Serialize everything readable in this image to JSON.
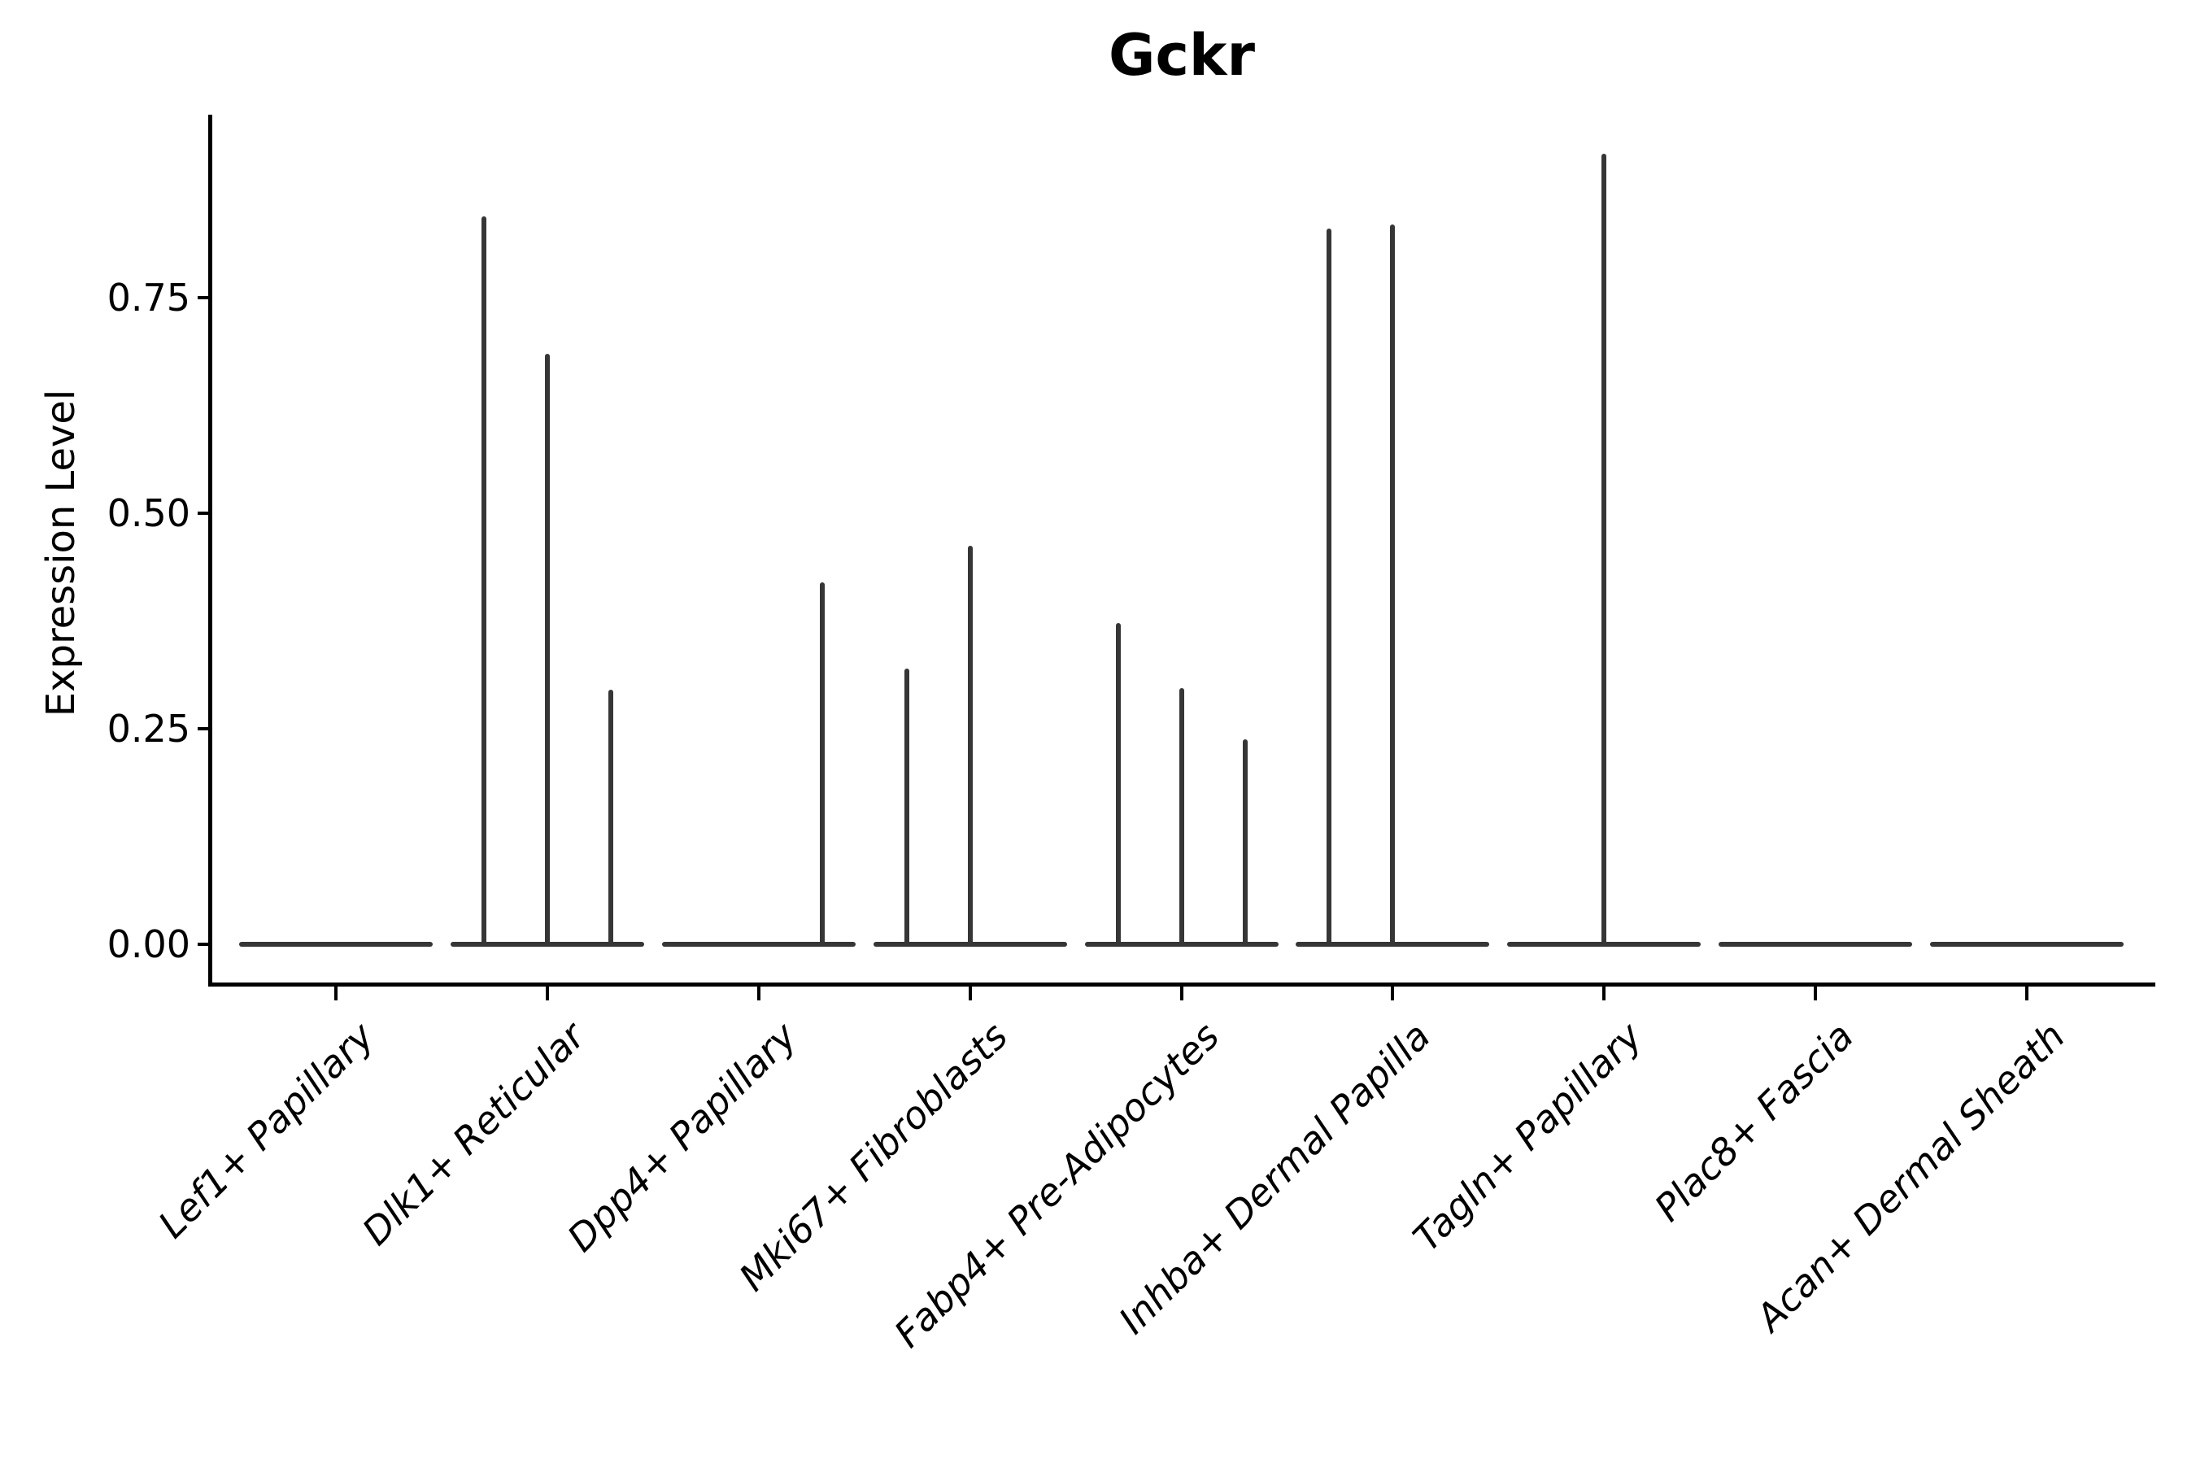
{
  "title": "Gckr",
  "axes": {
    "ylabel": "Expression Level",
    "ytick_labels": [
      "0.00",
      "0.25",
      "0.50",
      "0.75"
    ]
  },
  "colors": {
    "violin": "#363636",
    "axis": "#000000",
    "text": "#000000",
    "background": "#ffffff"
  },
  "chart_data": {
    "type": "violin",
    "title": "Gckr",
    "xlabel": "",
    "ylabel": "Expression Level",
    "yticks": [
      0.0,
      0.25,
      0.5,
      0.75
    ],
    "ylim": [
      -0.05,
      0.95
    ],
    "grid": false,
    "legend": "none",
    "categories": [
      "Lef1+ Papillary",
      "Dlk1+ Reticular",
      "Dpp4+ Papillary",
      "Mki67+ Fibroblasts",
      "Fabp4+ Pre-Adipocytes",
      "Inhba+ Dermal Papilla",
      "Tagln+ Papillary",
      "Plac8+ Fascia",
      "Acan+ Dermal Sheath"
    ],
    "description": "Violin plot of Gckr expression per cluster; each violin is collapsed to a flat line at 0 with thin vertical density spikes at sub-violin positions (left/center/right) reaching the listed peak expression values.",
    "series": [
      {
        "category": "Lef1+ Papillary",
        "spikes": []
      },
      {
        "category": "Dlk1+ Reticular",
        "spikes": [
          {
            "offset": "left",
            "peak": 0.844
          },
          {
            "offset": "center",
            "peak": 0.685
          },
          {
            "offset": "right",
            "peak": 0.295
          }
        ]
      },
      {
        "category": "Dpp4+ Papillary",
        "spikes": [
          {
            "offset": "right",
            "peak": 0.42
          }
        ]
      },
      {
        "category": "Mki67+ Fibroblasts",
        "spikes": [
          {
            "offset": "left",
            "peak": 0.32
          },
          {
            "offset": "center",
            "peak": 0.462
          }
        ]
      },
      {
        "category": "Fabp4+ Pre-Adipocytes",
        "spikes": [
          {
            "offset": "left",
            "peak": 0.373
          },
          {
            "offset": "center",
            "peak": 0.297
          },
          {
            "offset": "right",
            "peak": 0.238
          }
        ]
      },
      {
        "category": "Inhba+ Dermal Papilla",
        "spikes": [
          {
            "offset": "left",
            "peak": 0.83
          },
          {
            "offset": "center",
            "peak": 0.835
          }
        ]
      },
      {
        "category": "Tagln+ Papillary",
        "spikes": [
          {
            "offset": "center",
            "peak": 0.917
          }
        ]
      },
      {
        "category": "Plac8+ Fascia",
        "spikes": []
      },
      {
        "category": "Acan+ Dermal Sheath",
        "spikes": []
      }
    ]
  }
}
